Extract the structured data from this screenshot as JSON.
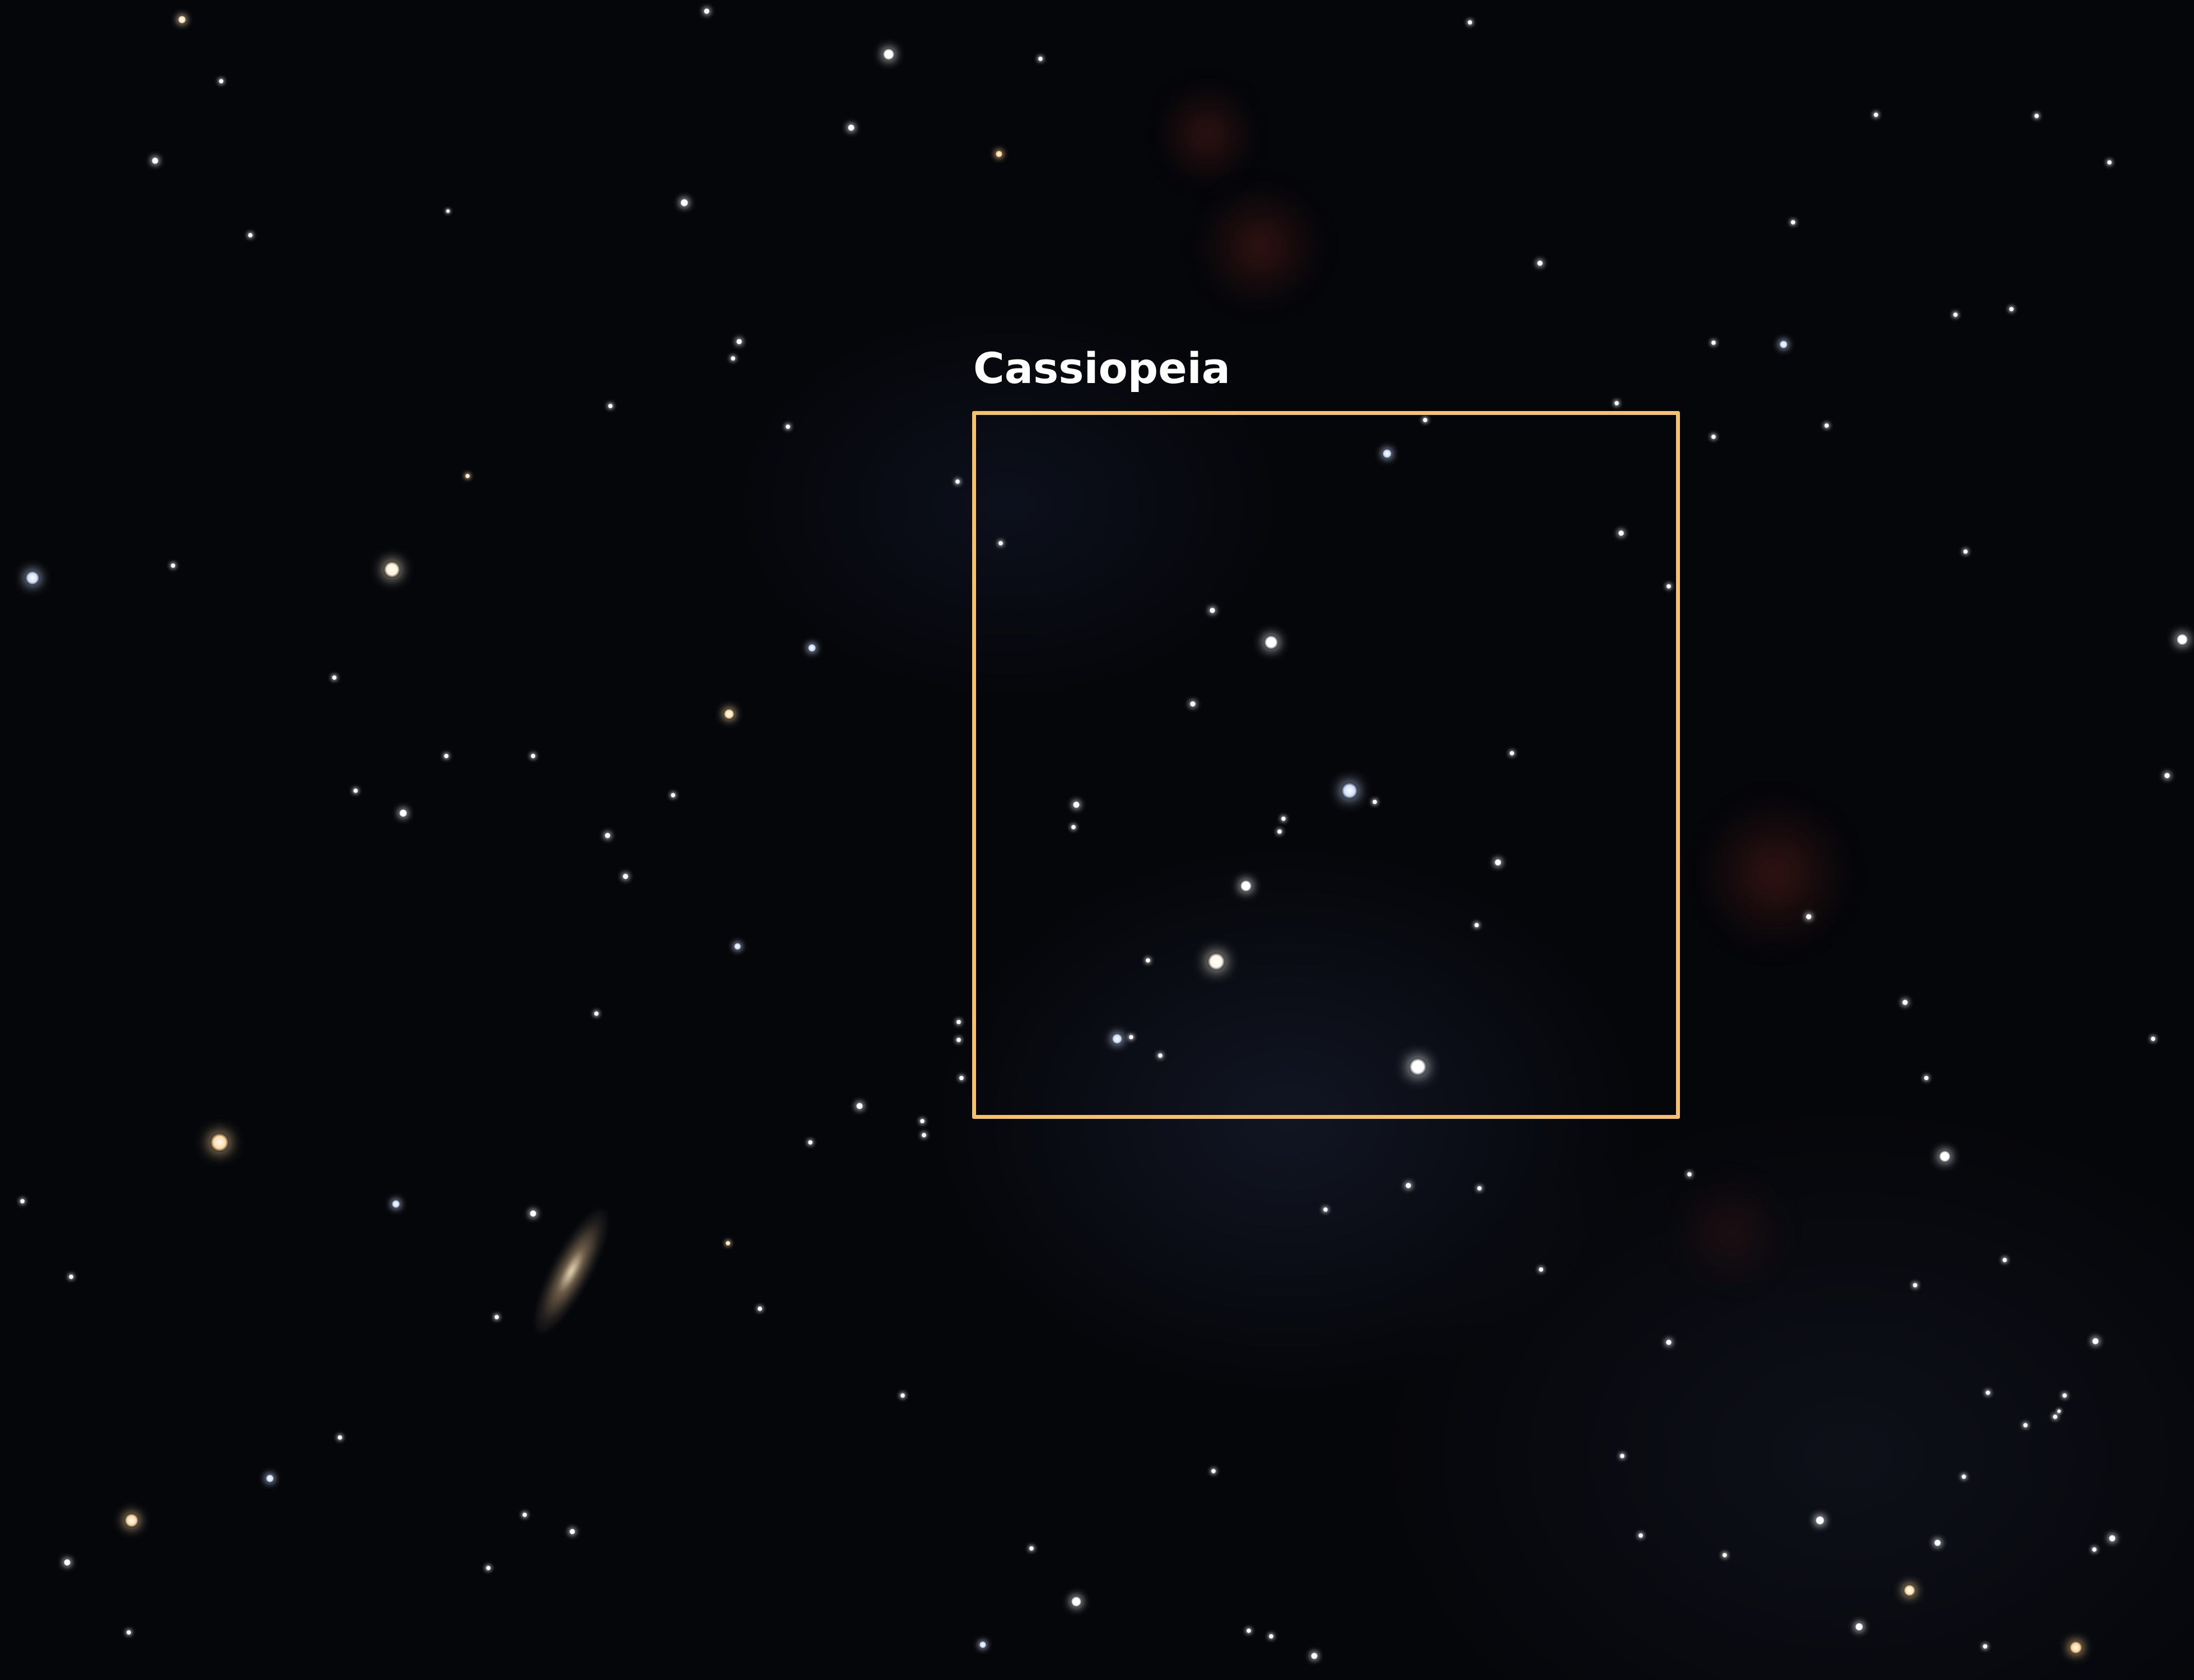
{
  "annotation": {
    "label": "Cassiopeia",
    "box_color": "#f5c16c",
    "label_color": "#ffffff"
  }
}
